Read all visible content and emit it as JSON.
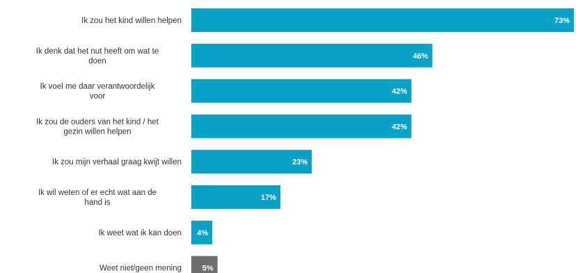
{
  "chart_data": {
    "type": "bar",
    "orientation": "horizontal",
    "categories": [
      [
        "Ik zou het kind willen helpen"
      ],
      [
        "Ik denk dat het nut heeft om wat te",
        "doen"
      ],
      [
        "Ik voel me daar verantwoordelijk",
        "voor"
      ],
      [
        "Ik zou de ouders van het kind / het",
        "gezin willen helpen"
      ],
      [
        "Ik zou mijn verhaal graag kwijt willen"
      ],
      [
        "Ik wil weten of er echt wat aan de",
        "hand is"
      ],
      [
        "Ik weet wat ik kan doen"
      ],
      [
        "Weet niet/geen mening"
      ]
    ],
    "values": [
      73,
      46,
      42,
      42,
      23,
      17,
      4,
      5
    ],
    "value_labels": [
      "73%",
      "46%",
      "42%",
      "42%",
      "23%",
      "17%",
      "4%",
      "5%"
    ],
    "colors": [
      "#0aa3c7",
      "#0aa3c7",
      "#0aa3c7",
      "#0aa3c7",
      "#0aa3c7",
      "#0aa3c7",
      "#0aa3c7",
      "#6d6d6d"
    ],
    "xlim": [
      0,
      73
    ],
    "grid": false,
    "legend": false
  }
}
